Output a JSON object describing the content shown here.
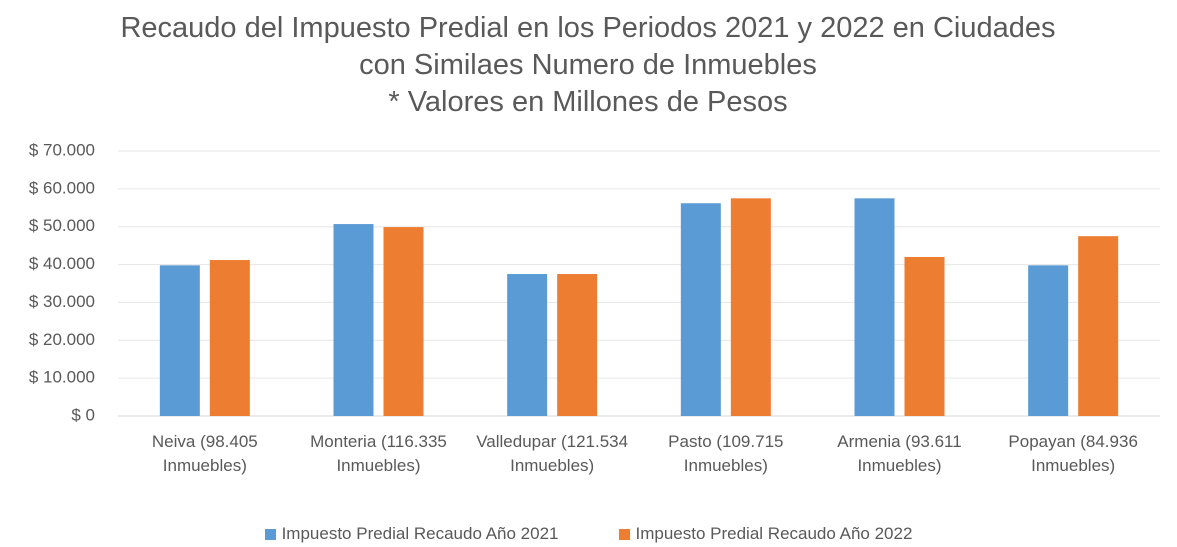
{
  "chart_data": {
    "type": "bar",
    "title": "Recaudo del Impuesto Predial en los Periodos 2021 y 2022 en Ciudades con Similaes Numero de Inmuebles",
    "subtitle": "* Valores en Millones de Pesos",
    "categories": [
      "Neiva (98.405 Inmuebles)",
      "Monteria (116.335 Inmuebles)",
      "Valledupar (121.534 Inmuebles)",
      "Pasto (109.715 Inmuebles)",
      "Armenia (93.611 Inmuebles)",
      "Popayan (84.936 Inmuebles)"
    ],
    "series": [
      {
        "name": "Impuesto Predial Recaudo Año 2021",
        "color": "#5b9bd5",
        "values": [
          39800,
          50700,
          37500,
          56200,
          57500,
          39800
        ]
      },
      {
        "name": "Impuesto Predial Recaudo Año 2022",
        "color": "#ed7d31",
        "values": [
          41200,
          49900,
          37500,
          57500,
          42000,
          47500
        ]
      }
    ],
    "ylim": [
      0,
      70000
    ],
    "yticks": [
      {
        "value": 0,
        "label": "$ 0"
      },
      {
        "value": 10000,
        "label": "$ 10.000"
      },
      {
        "value": 20000,
        "label": "$ 20.000"
      },
      {
        "value": 30000,
        "label": "$ 30.000"
      },
      {
        "value": 40000,
        "label": "$ 40.000"
      },
      {
        "value": 50000,
        "label": "$ 50.000"
      },
      {
        "value": 60000,
        "label": "$ 60.000"
      },
      {
        "value": 70000,
        "label": "$ 70.000"
      }
    ],
    "grid": true,
    "legend": "bottom"
  }
}
